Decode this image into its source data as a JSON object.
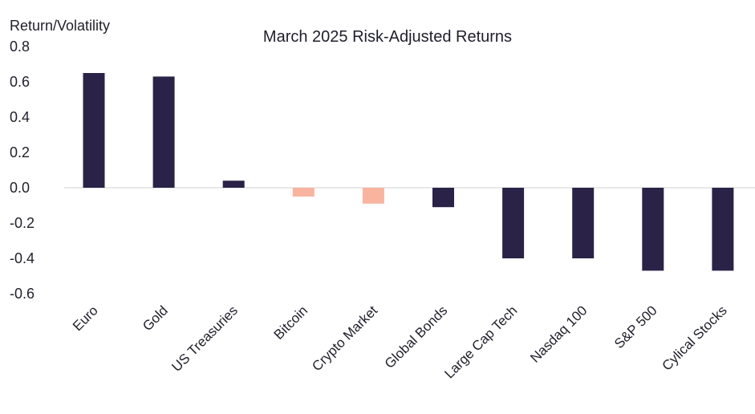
{
  "chart_data": {
    "type": "bar",
    "title": "March 2025 Risk-Adjusted Returns",
    "ylabel": "Return/Volatility",
    "xlabel": "",
    "ylim": [
      -0.6,
      0.8
    ],
    "yticks": [
      "0.8",
      "0.6",
      "0.4",
      "0.2",
      "0.0",
      "-0.2",
      "-0.4",
      "-0.6"
    ],
    "ytick_values": [
      0.8,
      0.6,
      0.4,
      0.2,
      0.0,
      -0.2,
      -0.4,
      -0.6
    ],
    "grid": false,
    "categories": [
      "Euro",
      "Gold",
      "US Treasuries",
      "Bitcoin",
      "Crypto Market",
      "Global Bonds",
      "Large Cap Tech",
      "Nasdaq 100",
      "S&P 500",
      "Cylical Stocks"
    ],
    "values": [
      0.65,
      0.63,
      0.04,
      -0.05,
      -0.09,
      -0.11,
      -0.4,
      -0.4,
      -0.47,
      -0.47
    ],
    "bar_colors": [
      "#2a2347",
      "#2a2347",
      "#2a2347",
      "#f9b4a0",
      "#f9b4a0",
      "#2a2347",
      "#2a2347",
      "#2a2347",
      "#2a2347",
      "#2a2347"
    ]
  }
}
